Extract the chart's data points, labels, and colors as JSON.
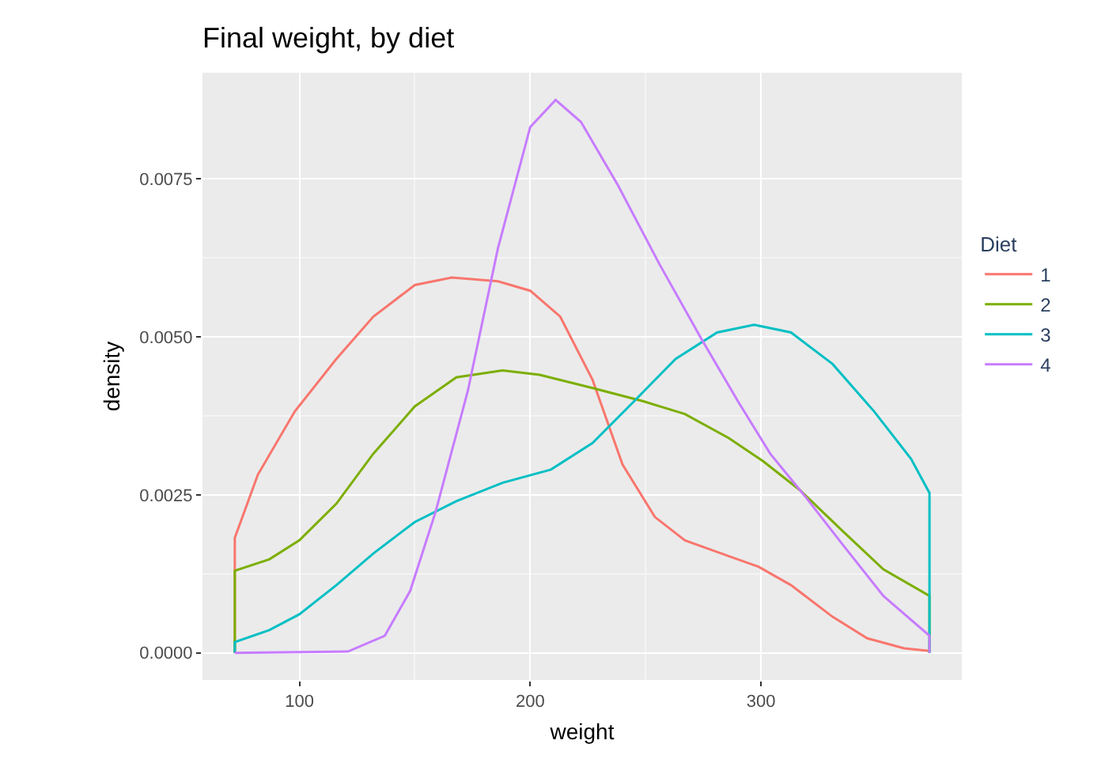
{
  "chart_data": {
    "type": "line",
    "title": "Final weight, by diet",
    "xlabel": "weight",
    "ylabel": "density",
    "legend_title": "Diet",
    "legend": "right",
    "grid": true,
    "xlim": [
      58,
      387
    ],
    "ylim": [
      -0.00043,
      0.00918
    ],
    "xticks": [
      100,
      200,
      300
    ],
    "yticks": [
      {
        "value": 0,
        "label": "0.0000"
      },
      {
        "value": 0.0025,
        "label": "0.0025"
      },
      {
        "value": 0.005,
        "label": "0.0050"
      },
      {
        "value": 0.0075,
        "label": "0.0075"
      }
    ],
    "series": [
      {
        "name": "1",
        "color": "#f8766d",
        "x": [
          72,
          72,
          82,
          98,
          116,
          132,
          150,
          166,
          186,
          200,
          213,
          227,
          240,
          254,
          267,
          286,
          299,
          313,
          331,
          346,
          362,
          373
        ],
        "values": [
          0,
          0.00182,
          0.00282,
          0.00382,
          0.00465,
          0.00532,
          0.00582,
          0.00594,
          0.00588,
          0.00573,
          0.00532,
          0.00432,
          0.00298,
          0.00215,
          0.00178,
          0.00153,
          0.00136,
          0.00107,
          0.00057,
          0.00023,
          7e-05,
          3e-05
        ]
      },
      {
        "name": "2",
        "color": "#7cae00",
        "x": [
          72,
          72,
          87,
          100,
          116,
          132,
          150,
          168,
          188,
          204,
          227,
          249,
          267,
          286,
          301,
          317,
          335,
          353,
          373,
          373
        ],
        "values": [
          0,
          0.0013,
          0.00148,
          0.00178,
          0.00236,
          0.00315,
          0.0039,
          0.00436,
          0.00447,
          0.0044,
          0.00419,
          0.00398,
          0.00378,
          0.0034,
          0.00303,
          0.00257,
          0.00194,
          0.00132,
          0.0009,
          0
        ]
      },
      {
        "name": "3",
        "color": "#00bfc4",
        "x": [
          72,
          72,
          87,
          100,
          116,
          132,
          150,
          168,
          188,
          209,
          227,
          245,
          263,
          281,
          297,
          313,
          331,
          349,
          365,
          373,
          373
        ],
        "values": [
          0,
          0.00017,
          0.00036,
          0.00061,
          0.00107,
          0.00157,
          0.00207,
          0.0024,
          0.00269,
          0.0029,
          0.00332,
          0.00398,
          0.00465,
          0.00507,
          0.00519,
          0.00507,
          0.00457,
          0.00382,
          0.00307,
          0.00253,
          0
        ]
      },
      {
        "name": "4",
        "color": "#c77cff",
        "x": [
          72,
          121,
          137,
          148,
          159,
          173,
          186,
          200,
          211,
          222,
          238,
          256,
          274,
          290,
          304,
          319,
          335,
          353,
          373,
          373
        ],
        "values": [
          0,
          2e-05,
          0.00027,
          0.00098,
          0.00223,
          0.00415,
          0.0064,
          0.00832,
          0.00875,
          0.0084,
          0.0074,
          0.00615,
          0.00498,
          0.00398,
          0.00315,
          0.00248,
          0.00173,
          0.0009,
          0.00027,
          0
        ]
      }
    ]
  }
}
